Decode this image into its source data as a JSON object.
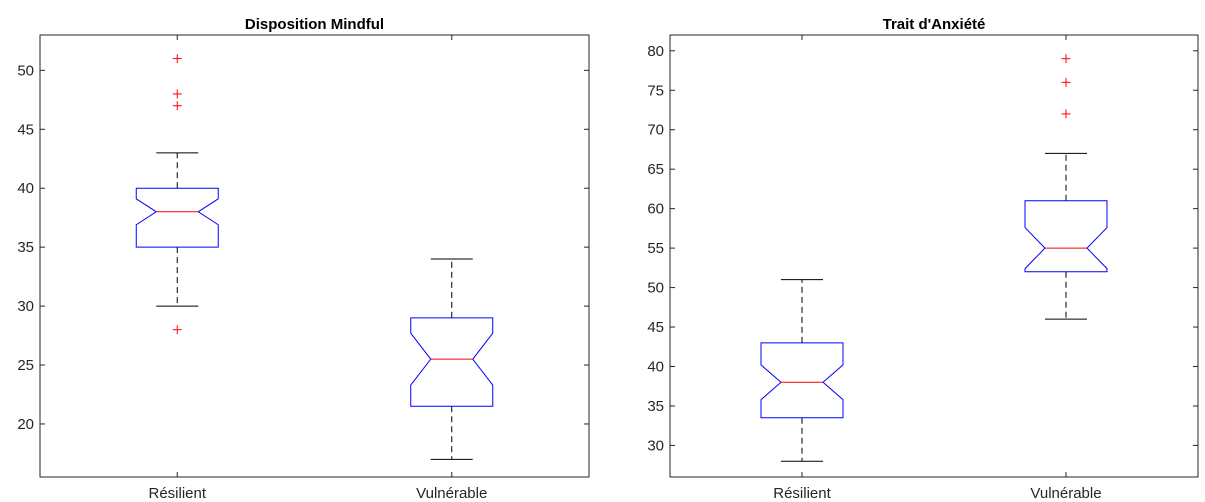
{
  "chart_data": [
    {
      "type": "boxplot",
      "title": "Disposition Mindful",
      "xlabel": "",
      "ylabel": "",
      "categories": [
        "Résilient",
        "Vulnérable"
      ],
      "ylim": [
        15.5,
        53
      ],
      "yticks": [
        20,
        25,
        30,
        35,
        40,
        45,
        50
      ],
      "notched": true,
      "boxes": [
        {
          "category": "Résilient",
          "whisker_low": 30,
          "q1": 35,
          "median": 38,
          "q3": 40,
          "whisker_high": 43,
          "notch_low": 36.9,
          "notch_high": 39.1,
          "outliers": [
            28,
            47,
            48,
            51
          ]
        },
        {
          "category": "Vulnérable",
          "whisker_low": 17,
          "q1": 21.5,
          "median": 25.5,
          "q3": 29,
          "whisker_high": 34,
          "notch_low": 23.3,
          "notch_high": 27.7,
          "outliers": []
        }
      ],
      "colors": {
        "box": "#0000ff",
        "median": "#ff0000",
        "whisker": "#000000",
        "outlier": "#ff0000",
        "axis": "#262626"
      }
    },
    {
      "type": "boxplot",
      "title": "Trait d'Anxiété",
      "xlabel": "",
      "ylabel": "",
      "categories": [
        "Résilient",
        "Vulnérable"
      ],
      "ylim": [
        26,
        82
      ],
      "yticks": [
        30,
        35,
        40,
        45,
        50,
        55,
        60,
        65,
        70,
        75,
        80
      ],
      "notched": true,
      "boxes": [
        {
          "category": "Résilient",
          "whisker_low": 28,
          "q1": 33.5,
          "median": 38,
          "q3": 43,
          "whisker_high": 51,
          "notch_low": 35.8,
          "notch_high": 40.2,
          "outliers": []
        },
        {
          "category": "Vulnérable",
          "whisker_low": 46,
          "q1": 52,
          "median": 55,
          "q3": 61,
          "whisker_high": 67,
          "notch_low": 52.4,
          "notch_high": 57.6,
          "outliers": [
            72,
            76,
            79
          ]
        }
      ],
      "colors": {
        "box": "#0000ff",
        "median": "#ff0000",
        "whisker": "#000000",
        "outlier": "#ff0000",
        "axis": "#262626"
      }
    }
  ]
}
